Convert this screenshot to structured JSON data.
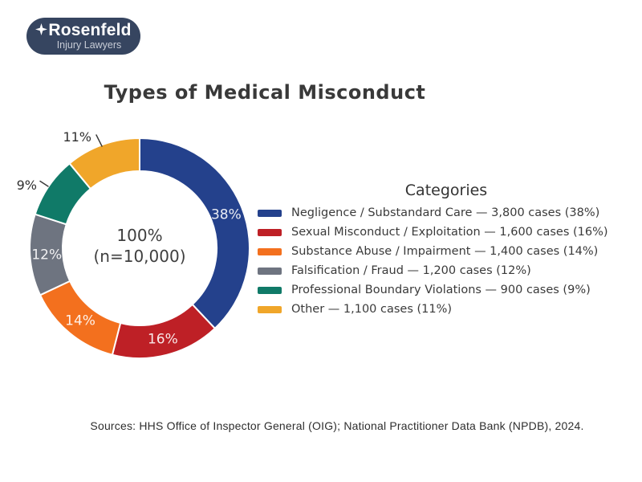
{
  "logo": {
    "name": "Rosenfeld",
    "tagline": "Injury Lawyers",
    "bg_color": "#364560",
    "star_icon": "four-point-star"
  },
  "title": "Types of Medical Misconduct",
  "chart_data": {
    "type": "pie",
    "subtype": "donut",
    "title": "Types of Medical Misconduct",
    "start_angle": "top",
    "direction": "clockwise",
    "total": 10000,
    "total_label": "100%",
    "total_sublabel": "(n=10,000)",
    "legend_title": "Categories",
    "legend_position": "right",
    "categories": [
      "Negligence / Substandard Care",
      "Sexual Misconduct / Exploitation",
      "Substance Abuse / Impairment",
      "Falsification / Fraud",
      "Professional Boundary Violations",
      "Other"
    ],
    "values": [
      3800,
      1600,
      1400,
      1200,
      900,
      1100
    ],
    "percents": [
      38,
      16,
      14,
      12,
      9,
      11
    ],
    "slices": [
      {
        "label": "Negligence / Substandard Care",
        "cases": 3800,
        "percent": 38,
        "color": "#24418c",
        "slice_label": "38%",
        "legend_text": "Negligence / Substandard Care — 3,800 cases (38%)",
        "label_placement": "inside"
      },
      {
        "label": "Sexual Misconduct / Exploitation",
        "cases": 1600,
        "percent": 16,
        "color": "#be2026",
        "slice_label": "16%",
        "legend_text": "Sexual Misconduct / Exploitation — 1,600 cases (16%)",
        "label_placement": "inside"
      },
      {
        "label": "Substance Abuse / Impairment",
        "cases": 1400,
        "percent": 14,
        "color": "#f3701e",
        "slice_label": "14%",
        "legend_text": "Substance Abuse / Impairment — 1,400 cases (14%)",
        "label_placement": "inside"
      },
      {
        "label": "Falsification / Fraud",
        "cases": 1200,
        "percent": 12,
        "color": "#6e7480",
        "slice_label": "12%",
        "legend_text": "Falsification / Fraud — 1,200 cases (12%)",
        "label_placement": "inside"
      },
      {
        "label": "Professional Boundary Violations",
        "cases": 900,
        "percent": 9,
        "color": "#107a68",
        "slice_label": "9%",
        "legend_text": "Professional Boundary Violations — 900 cases (9%)",
        "label_placement": "outside"
      },
      {
        "label": "Other",
        "cases": 1100,
        "percent": 11,
        "color": "#f0a62a",
        "slice_label": "11%",
        "legend_text": "Other — 1,100 cases (11%)",
        "label_placement": "outside"
      }
    ]
  },
  "source": "Sources: HHS Office of Inspector General (OIG); National Practitioner Data Bank (NPDB), 2024."
}
